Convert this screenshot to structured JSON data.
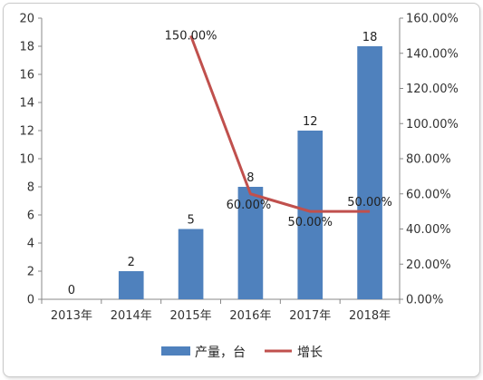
{
  "chart_data": {
    "type": "bar+line",
    "categories": [
      "2013年",
      "2014年",
      "2015年",
      "2016年",
      "2017年",
      "2018年"
    ],
    "series": [
      {
        "name": "产量，台",
        "type": "bar",
        "axis": "left",
        "color": "#4f81bd",
        "values": [
          0,
          2,
          5,
          8,
          12,
          18
        ],
        "labels": [
          "0",
          "2",
          "5",
          "8",
          "12",
          "18"
        ]
      },
      {
        "name": "增长",
        "type": "line",
        "axis": "right",
        "color": "#c0504d",
        "values": [
          null,
          null,
          1.5,
          0.6,
          0.5,
          0.5
        ],
        "labels": [
          "",
          "",
          "150.00%",
          "60.00%",
          "50.00%",
          "50.00%"
        ]
      }
    ],
    "y_left": {
      "min": 0,
      "max": 20,
      "step": 2
    },
    "y_right": {
      "min": 0,
      "max": 1.6,
      "step": 0.2,
      "format": "percent"
    },
    "left_tick_labels": [
      "0",
      "2",
      "4",
      "6",
      "8",
      "10",
      "12",
      "14",
      "16",
      "18",
      "20"
    ],
    "right_tick_labels": [
      "0.00%",
      "20.00%",
      "40.00%",
      "60.00%",
      "80.00%",
      "100.00%",
      "120.00%",
      "140.00%",
      "160.00%"
    ],
    "legend": {
      "position": "bottom"
    },
    "grid": false
  }
}
